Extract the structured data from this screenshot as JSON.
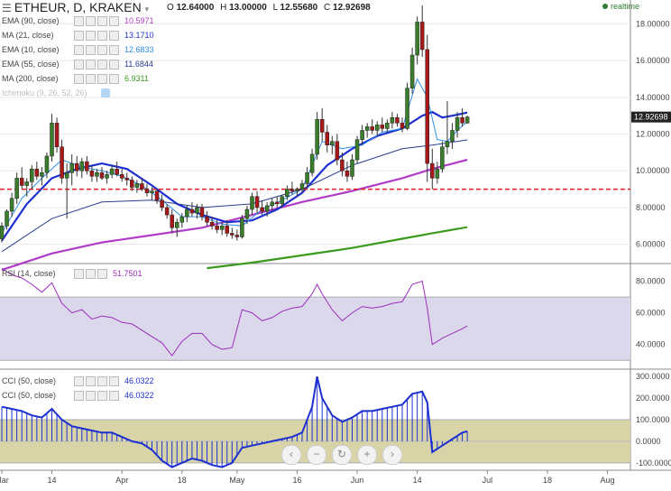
{
  "header": {
    "title": "ETHEUR, D, KRAKEN",
    "ohlc": {
      "O": "12.64000",
      "H": "13.00000",
      "L": "12.55680",
      "C": "12.92698"
    },
    "realtime": "realtime"
  },
  "legend": [
    {
      "label": "EMA (90, close)",
      "value": "10.5971",
      "color": "#b03cc8"
    },
    {
      "label": "MA (21, close)",
      "value": "13.1710",
      "color": "#1c2fd0"
    },
    {
      "label": "EMA (10, close)",
      "value": "12.6833",
      "color": "#2c8ee8"
    },
    {
      "label": "EMA (55, close)",
      "value": "11.6844",
      "color": "#2a3d8f"
    },
    {
      "label": "MA (200, close)",
      "value": "6.9311",
      "color": "#3a9a1e"
    }
  ],
  "legend_faded": "Ichimoku (9, 26, 52, 26)",
  "rsi_label": "RSI (14, close)",
  "rsi_value": "51.7501",
  "cci_labels": [
    "CCI (50, close)",
    "CCI (50, close)"
  ],
  "cci_values": [
    "46.0322",
    "46.0322"
  ],
  "zoom_buttons": [
    "‹",
    "−",
    "↻",
    "+",
    "›"
  ],
  "chart_data": [
    {
      "type": "candlestick",
      "title": "ETHEUR, D, KRAKEN",
      "ylim": [
        5.0,
        19.2
      ],
      "yticks": [
        "6.00000",
        "8.00000",
        "10.00000",
        "12.00000",
        "14.00000",
        "16.00000",
        "18.00000"
      ],
      "ytick_values": [
        6,
        8,
        10,
        12,
        14,
        16,
        18
      ],
      "last_price_label": "12.92698",
      "last_price": 12.92698,
      "hline": 9.0,
      "candles": [
        [
          0,
          6.3,
          7.2,
          6.1,
          7.0
        ],
        [
          1,
          7.0,
          7.9,
          6.8,
          7.8
        ],
        [
          2,
          7.8,
          8.8,
          7.5,
          8.5
        ],
        [
          3,
          8.5,
          9.9,
          8.2,
          9.6
        ],
        [
          4,
          9.6,
          10.2,
          9.0,
          9.2
        ],
        [
          5,
          9.2,
          9.6,
          8.6,
          9.4
        ],
        [
          6,
          9.4,
          10.3,
          9.0,
          10.1
        ],
        [
          7,
          10.1,
          10.5,
          9.5,
          9.7
        ],
        [
          8,
          9.7,
          10.2,
          9.2,
          9.9
        ],
        [
          9,
          9.9,
          11.0,
          9.6,
          10.8
        ],
        [
          10,
          10.8,
          13.1,
          10.5,
          12.6
        ],
        [
          11,
          12.6,
          12.9,
          11.0,
          11.3
        ],
        [
          12,
          11.3,
          11.7,
          9.3,
          9.6
        ],
        [
          13,
          9.6,
          10.4,
          7.4,
          9.9
        ],
        [
          14,
          9.9,
          10.9,
          9.2,
          10.4
        ],
        [
          15,
          10.4,
          10.8,
          9.7,
          10.0
        ],
        [
          16,
          10.0,
          10.7,
          9.6,
          10.5
        ],
        [
          17,
          10.5,
          10.8,
          9.8,
          10.0
        ],
        [
          18,
          10.0,
          10.3,
          9.4,
          9.7
        ],
        [
          19,
          9.7,
          10.1,
          9.4,
          9.9
        ],
        [
          20,
          9.9,
          10.2,
          9.5,
          9.6
        ],
        [
          21,
          9.6,
          10.0,
          9.3,
          9.8
        ],
        [
          22,
          9.8,
          10.3,
          9.6,
          10.1
        ],
        [
          23,
          10.1,
          10.5,
          9.7,
          9.8
        ],
        [
          24,
          9.8,
          10.1,
          9.4,
          9.6
        ],
        [
          25,
          9.6,
          9.9,
          9.2,
          9.5
        ],
        [
          26,
          9.5,
          9.7,
          8.9,
          9.1
        ],
        [
          27,
          9.1,
          9.5,
          8.8,
          9.3
        ],
        [
          28,
          9.3,
          9.6,
          8.9,
          9.0
        ],
        [
          29,
          9.0,
          9.3,
          8.6,
          8.8
        ],
        [
          30,
          8.8,
          9.1,
          8.4,
          8.9
        ],
        [
          31,
          8.9,
          9.0,
          8.2,
          8.4
        ],
        [
          32,
          8.4,
          8.7,
          7.8,
          8.0
        ],
        [
          33,
          8.0,
          8.2,
          7.4,
          7.6
        ],
        [
          34,
          7.6,
          7.9,
          6.6,
          6.9
        ],
        [
          35,
          6.9,
          7.4,
          6.4,
          7.2
        ],
        [
          36,
          7.2,
          7.7,
          6.9,
          7.5
        ],
        [
          37,
          7.5,
          8.1,
          7.2,
          7.9
        ],
        [
          38,
          7.9,
          8.3,
          7.5,
          7.7
        ],
        [
          39,
          7.7,
          8.2,
          7.4,
          8.0
        ],
        [
          40,
          8.0,
          8.2,
          7.3,
          7.5
        ],
        [
          41,
          7.5,
          7.8,
          7.0,
          7.2
        ],
        [
          42,
          7.2,
          7.5,
          6.8,
          7.0
        ],
        [
          43,
          7.0,
          7.3,
          6.6,
          6.8
        ],
        [
          44,
          6.8,
          7.2,
          6.5,
          7.0
        ],
        [
          45,
          7.0,
          7.3,
          6.4,
          6.6
        ],
        [
          46,
          6.6,
          6.9,
          6.3,
          6.5
        ],
        [
          47,
          6.5,
          6.8,
          6.2,
          6.4
        ],
        [
          48,
          6.4,
          7.6,
          6.3,
          7.4
        ],
        [
          49,
          7.4,
          8.1,
          7.1,
          7.9
        ],
        [
          50,
          7.9,
          8.8,
          7.6,
          8.6
        ],
        [
          51,
          8.6,
          8.9,
          7.7,
          8.0
        ],
        [
          52,
          8.0,
          8.4,
          7.6,
          7.8
        ],
        [
          53,
          7.8,
          8.3,
          7.5,
          8.1
        ],
        [
          54,
          8.1,
          8.5,
          7.8,
          8.3
        ],
        [
          55,
          8.3,
          8.6,
          8.0,
          8.2
        ],
        [
          56,
          8.2,
          8.7,
          8.0,
          8.6
        ],
        [
          57,
          8.6,
          9.2,
          8.4,
          9.0
        ],
        [
          58,
          9.0,
          9.4,
          8.7,
          8.9
        ],
        [
          59,
          8.9,
          9.1,
          8.6,
          9.0
        ],
        [
          60,
          9.0,
          9.5,
          8.8,
          9.3
        ],
        [
          61,
          9.3,
          10.2,
          9.1,
          9.9
        ],
        [
          62,
          9.9,
          11.2,
          9.7,
          10.9
        ],
        [
          63,
          10.9,
          13.2,
          10.6,
          12.8
        ],
        [
          64,
          12.8,
          13.4,
          11.6,
          12.1
        ],
        [
          65,
          12.1,
          12.5,
          11.0,
          11.4
        ],
        [
          66,
          11.4,
          11.9,
          10.9,
          11.6
        ],
        [
          67,
          11.6,
          12.0,
          10.3,
          10.6
        ],
        [
          68,
          10.6,
          11.0,
          9.7,
          10.0
        ],
        [
          69,
          10.0,
          10.5,
          9.4,
          9.7
        ],
        [
          70,
          9.7,
          10.9,
          9.5,
          10.6
        ],
        [
          71,
          10.6,
          11.9,
          10.4,
          11.7
        ],
        [
          72,
          11.7,
          12.5,
          11.4,
          12.2
        ],
        [
          73,
          12.2,
          12.6,
          11.8,
          12.4
        ],
        [
          74,
          12.4,
          12.8,
          12.0,
          12.2
        ],
        [
          75,
          12.2,
          12.7,
          11.9,
          12.5
        ],
        [
          76,
          12.5,
          12.9,
          12.1,
          12.3
        ],
        [
          77,
          12.3,
          12.8,
          12.1,
          12.6
        ],
        [
          78,
          12.6,
          13.2,
          12.3,
          12.9
        ],
        [
          79,
          12.9,
          13.1,
          12.4,
          12.6
        ],
        [
          80,
          12.6,
          12.9,
          12.1,
          12.3
        ],
        [
          81,
          12.3,
          14.8,
          12.2,
          14.5
        ],
        [
          82,
          14.5,
          16.7,
          14.2,
          16.3
        ],
        [
          83,
          16.3,
          18.4,
          15.8,
          18.1
        ],
        [
          84,
          18.1,
          19.0,
          16.2,
          16.6
        ],
        [
          85,
          16.6,
          17.4,
          9.4,
          10.4
        ],
        [
          86,
          10.4,
          11.2,
          9.0,
          9.6
        ],
        [
          87,
          9.6,
          10.5,
          9.3,
          10.1
        ],
        [
          88,
          10.1,
          11.6,
          9.9,
          11.3
        ],
        [
          89,
          11.3,
          13.8,
          10.9,
          11.6
        ],
        [
          90,
          11.6,
          12.6,
          11.2,
          12.2
        ],
        [
          91,
          12.2,
          13.2,
          11.8,
          12.9
        ],
        [
          92,
          12.9,
          13.4,
          12.4,
          12.6
        ],
        [
          93,
          12.6,
          13.0,
          12.56,
          12.93
        ]
      ],
      "series": [
        {
          "name": "EMA (90, close)",
          "color": "#b03cc8",
          "x": [
            0,
            10,
            20,
            30,
            40,
            50,
            60,
            70,
            80,
            86,
            93
          ],
          "y": [
            4.6,
            5.5,
            6.1,
            6.5,
            6.9,
            7.6,
            8.3,
            8.9,
            9.6,
            10.1,
            10.6
          ]
        },
        {
          "name": "MA (21, close)",
          "color": "#1c2fd0",
          "x": [
            0,
            5,
            10,
            15,
            20,
            25,
            30,
            35,
            40,
            45,
            50,
            55,
            60,
            65,
            70,
            75,
            80,
            84,
            86,
            88,
            90,
            93
          ],
          "y": [
            6.2,
            8.2,
            9.6,
            10.1,
            10.4,
            10.1,
            9.2,
            8.2,
            7.6,
            7.2,
            7.3,
            7.9,
            8.8,
            10.3,
            11.2,
            11.9,
            12.3,
            13.0,
            13.2,
            12.9,
            13.0,
            13.17
          ]
        },
        {
          "name": "EMA (10, close)",
          "color": "#2c8ee8",
          "x": [
            0,
            4,
            8,
            12,
            16,
            20,
            24,
            28,
            32,
            36,
            40,
            44,
            48,
            52,
            56,
            60,
            64,
            68,
            72,
            76,
            80,
            83,
            85,
            87,
            89,
            91,
            93
          ],
          "y": [
            6.6,
            8.5,
            9.6,
            10.6,
            10.2,
            10.0,
            9.7,
            9.2,
            8.4,
            7.5,
            7.5,
            7.1,
            7.0,
            7.9,
            8.4,
            9.0,
            11.6,
            11.2,
            11.4,
            12.1,
            12.3,
            15.0,
            14.0,
            11.7,
            11.6,
            12.2,
            12.68
          ]
        },
        {
          "name": "EMA (55, close)",
          "color": "#2a3d8f",
          "x": [
            0,
            10,
            20,
            30,
            40,
            50,
            60,
            70,
            80,
            86,
            93
          ],
          "y": [
            5.6,
            7.4,
            8.3,
            8.4,
            8.0,
            8.2,
            9.0,
            10.3,
            11.2,
            11.4,
            11.68
          ]
        },
        {
          "name": "MA (200, close)",
          "color": "#3a9a1e",
          "x": [
            41,
            50,
            60,
            70,
            80,
            86,
            93
          ],
          "y": [
            4.7,
            5.0,
            5.4,
            5.8,
            6.3,
            6.6,
            6.93
          ]
        }
      ]
    },
    {
      "type": "line",
      "title": "RSI (14, close)",
      "ylim": [
        25,
        90
      ],
      "yticks": [
        "40.0000",
        "60.0000",
        "80.0000"
      ],
      "ytick_values": [
        40,
        60,
        80
      ],
      "band": [
        30,
        70
      ],
      "series": [
        {
          "name": "RSI (14, close)",
          "color": "#9c2dbd",
          "x": [
            0,
            2,
            4,
            6,
            8,
            10,
            12,
            14,
            16,
            18,
            20,
            22,
            24,
            26,
            28,
            30,
            32,
            34,
            36,
            38,
            40,
            42,
            44,
            46,
            48,
            50,
            52,
            54,
            56,
            58,
            60,
            62,
            63,
            64,
            66,
            68,
            70,
            72,
            74,
            76,
            78,
            80,
            82,
            84,
            85,
            86,
            88,
            90,
            92,
            93
          ],
          "y": [
            88,
            84,
            82,
            78,
            73,
            79,
            66,
            60,
            62,
            56,
            58,
            57,
            54,
            53,
            49,
            45,
            41,
            33,
            42,
            47,
            47,
            40,
            37,
            38,
            62,
            60,
            55,
            57,
            61,
            63,
            64,
            72,
            78,
            72,
            62,
            55,
            60,
            64,
            63,
            64,
            66,
            67,
            78,
            80,
            63,
            40,
            44,
            47,
            50,
            51.75
          ]
        }
      ]
    },
    {
      "type": "bar",
      "title": "CCI (50, close)",
      "ylim": [
        -130,
        330
      ],
      "yticks": [
        "-100.0000",
        "0.0000",
        "100.0000",
        "200.0000",
        "300.0000"
      ],
      "ytick_values": [
        -100,
        0,
        100,
        200,
        300
      ],
      "band": [
        -100,
        100
      ],
      "series": [
        {
          "name": "CCI (50, close)",
          "color": "#1c2fd0",
          "x": [
            0,
            2,
            4,
            6,
            8,
            10,
            12,
            14,
            16,
            18,
            20,
            22,
            24,
            26,
            28,
            30,
            32,
            34,
            36,
            38,
            40,
            42,
            44,
            46,
            48,
            50,
            52,
            54,
            56,
            58,
            60,
            62,
            63,
            64,
            66,
            68,
            70,
            72,
            74,
            76,
            78,
            80,
            82,
            84,
            85,
            86,
            88,
            90,
            92,
            93
          ],
          "y": [
            160,
            150,
            140,
            120,
            110,
            150,
            100,
            70,
            60,
            50,
            40,
            40,
            20,
            0,
            -10,
            -40,
            -90,
            -120,
            -100,
            -80,
            -90,
            -110,
            -120,
            -100,
            -30,
            -20,
            -10,
            0,
            10,
            20,
            40,
            160,
            300,
            200,
            120,
            90,
            110,
            140,
            140,
            150,
            160,
            170,
            220,
            230,
            180,
            -50,
            -20,
            10,
            40,
            46
          ]
        }
      ]
    }
  ],
  "x_axis": {
    "ticks": [
      {
        "label": "Mar",
        "x": 0
      },
      {
        "label": "14",
        "x": 10
      },
      {
        "label": "Apr",
        "x": 24
      },
      {
        "label": "18",
        "x": 36
      },
      {
        "label": "May",
        "x": 47
      },
      {
        "label": "16",
        "x": 59
      },
      {
        "label": "Jun",
        "x": 71
      },
      {
        "label": "14",
        "x": 83
      },
      {
        "label": "Jul",
        "x": 97
      },
      {
        "label": "18",
        "x": 109
      },
      {
        "label": "Aug",
        "x": 121
      }
    ]
  }
}
